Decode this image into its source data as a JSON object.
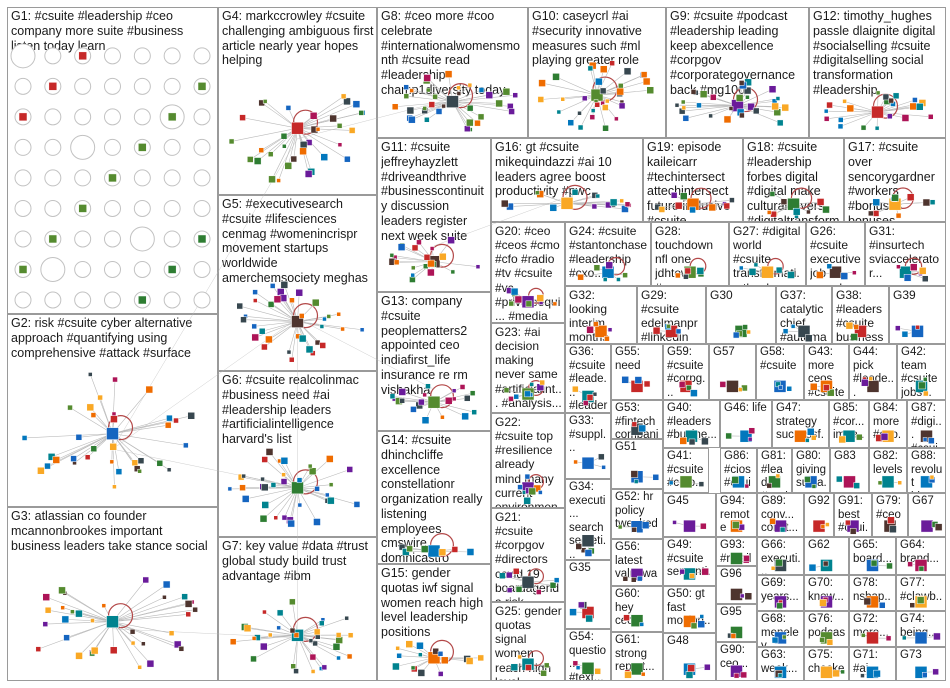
{
  "groups": [
    {
      "id": "G1",
      "label": "G1: #csuite #leadership #ceo company more suite #business listen today learn"
    },
    {
      "id": "G2",
      "label": "G2: risk #csuite cyber alternative approach #quantifying using comprehensive #attack #surface"
    },
    {
      "id": "G3",
      "label": "G3: atlassian co founder mcannonbrookes important business leaders take stance social"
    },
    {
      "id": "G4",
      "label": "G4: markccrowley #csuite challenging ambiguous first article nearly year hopes helping"
    },
    {
      "id": "G5",
      "label": "G5: #executivesearch #csuite #lifesciences cenmag #womenincrispr movement startups worldwide amerchemsociety meghas"
    },
    {
      "id": "G6",
      "label": "G6: #csuite realcolinmac #business need #ai #leadership leaders #artificialintelligence harvard's list"
    },
    {
      "id": "G7",
      "label": "G7: key value #data #trust global study build trust advantage #ibm"
    },
    {
      "id": "G8",
      "label": "G8: #ceo more #coo celebrate #internationalwomensmonth #csuite read #leadership champ1diversity today"
    },
    {
      "id": "G9",
      "label": "G9: #csuite #podcast #leadership leading keep abexcellence #corpgov #corporategovernance back #mg100"
    },
    {
      "id": "G10",
      "label": "G10: caseycrl #ai #security innovative measures such #ml playing greater role"
    },
    {
      "id": "G11",
      "label": "G11: #csuite jeffreyhayzlett #driveandthrive #businesscontinuity discussion leaders register next week suite"
    },
    {
      "id": "G12",
      "label": "G12: timothy_hughes passle dlaignite digital #socialselling #csuite #digitalselling social transformation #leadership"
    },
    {
      "id": "G13",
      "label": "G13: company #csuite peoplematters2 appointed ceo indiafirst_life insurance re rm vishakha"
    },
    {
      "id": "G14",
      "label": "G14: #csuite dhinchcliffe excellence constellationr organization really listening employees cmswire domnicastro"
    },
    {
      "id": "G15",
      "label": "G15: gender quotas iwf signal women reach high level leadership positions"
    },
    {
      "id": "G16",
      "label": "G16: gt #csuite mikequindazzi #ai 10 leaders agree boost productivity #pwc"
    },
    {
      "id": "G17",
      "label": "G17: #csuite over sencorygardner #workers #bonuses bonuses senatemajldr..."
    },
    {
      "id": "G18",
      "label": "G18: #csuite #leadership forbes digital #digital make cultural levers #digitaltransform..."
    },
    {
      "id": "G19",
      "label": "G19: episode kaileicarr #techintersect attechintersect future inclusive #csuite..."
    },
    {
      "id": "G20",
      "label": "G20: #ceo #ceos #cmo #cfo #radio #tv #csuite #vc #privateequi... #media"
    },
    {
      "id": "G21",
      "label": "G21: #csuite #corpgov #directors covid 19 boardagenda risk boards..."
    },
    {
      "id": "G22",
      "label": "G22: #csuite top #resilience already mind many current environmen..."
    },
    {
      "id": "G23",
      "label": "G23: #ai decision making never same #artificialint... #analysis..."
    },
    {
      "id": "G24",
      "label": "G24: #csuite #stantonchase #leadership #cxo..."
    },
    {
      "id": "G25",
      "label": "G25: gender quotas signal women reach high level leadership..."
    },
    {
      "id": "G26",
      "label": "G26: #csuite executive job search megguiseppi... join..."
    },
    {
      "id": "G27",
      "label": "G27: #digital world #csuite transformati... thanks..."
    },
    {
      "id": "G28",
      "label": "G28: touchdown nfl one jdhtown #cmo..."
    },
    {
      "id": "G29",
      "label": "G29: #csuite edelmanpr #linkedin study..."
    },
    {
      "id": "G30",
      "label": "G30"
    },
    {
      "id": "G31",
      "label": "G31: #insurtech sviaccelerator..."
    },
    {
      "id": "G32",
      "label": "G32: looking interim months application..."
    },
    {
      "id": "G33",
      "label": "G33: #suppl..."
    },
    {
      "id": "G34",
      "label": "G34: executi... search secreti... #gated..."
    },
    {
      "id": "G35",
      "label": "G35"
    },
    {
      "id": "G36",
      "label": "G36: #csuite #leade... #leaders #wome..."
    },
    {
      "id": "G37",
      "label": "G37: catalytic chief #automa..."
    },
    {
      "id": "G38",
      "label": "G38: #leaders #csuite business..."
    },
    {
      "id": "G39",
      "label": "G39"
    },
    {
      "id": "G40",
      "label": "G40: #leaders #busine..."
    },
    {
      "id": "G41",
      "label": "G41: #csuite #cmo..."
    },
    {
      "id": "G42",
      "label": "G42: team #csuite jobs..."
    },
    {
      "id": "G43",
      "label": "G43: more ceos #csuite..."
    },
    {
      "id": "G44",
      "label": "G44: pick #leade... #csuite..."
    },
    {
      "id": "G45",
      "label": "G45"
    },
    {
      "id": "G46",
      "label": "G46: life"
    },
    {
      "id": "G47",
      "label": "G47: strategy successf..."
    },
    {
      "id": "G48",
      "label": "G48"
    },
    {
      "id": "G49",
      "label": "G49: #csuite semanti..."
    },
    {
      "id": "G50",
      "label": "G50: gt fast moving..."
    },
    {
      "id": "G51",
      "label": "G51"
    },
    {
      "id": "G52",
      "label": "G52: hr policy tweaked..."
    },
    {
      "id": "G53",
      "label": "G53: #fintech compani..."
    },
    {
      "id": "G54",
      "label": "G54: questio... #text..."
    },
    {
      "id": "G55",
      "label": "G55: need"
    },
    {
      "id": "G56",
      "label": "G56: latest valuewa..."
    },
    {
      "id": "G57",
      "label": "G57"
    },
    {
      "id": "G58",
      "label": "G58: #csuite"
    },
    {
      "id": "G59",
      "label": "G59: #csuite #corpg... #invest..."
    },
    {
      "id": "G60",
      "label": "G60: hey ceos cmos..."
    },
    {
      "id": "G61",
      "label": "G61: strong report..."
    },
    {
      "id": "G62",
      "label": "G62"
    },
    {
      "id": "G63",
      "label": "G63: week..."
    },
    {
      "id": "G64",
      "label": "G64: brand..."
    },
    {
      "id": "G65",
      "label": "G65: board..."
    },
    {
      "id": "G66",
      "label": "G66: executi..."
    },
    {
      "id": "G67",
      "label": "G67"
    },
    {
      "id": "G68",
      "label": "G68: meneley"
    },
    {
      "id": "G69",
      "label": "G69: years..."
    },
    {
      "id": "G70",
      "label": "G70: know..."
    },
    {
      "id": "G71",
      "label": "G71: #ai..."
    },
    {
      "id": "G72",
      "label": "G72: more..."
    },
    {
      "id": "G73",
      "label": "G73"
    },
    {
      "id": "G74",
      "label": "G74: being..."
    },
    {
      "id": "G75",
      "label": "G75: checke..."
    },
    {
      "id": "G76",
      "label": "G76: podcas..."
    },
    {
      "id": "G77",
      "label": "G77: #clawb..."
    },
    {
      "id": "G78",
      "label": "G78: nsbap..."
    },
    {
      "id": "G79",
      "label": "G79: #ceo"
    },
    {
      "id": "G80",
      "label": "G80: giving susta..."
    },
    {
      "id": "G81",
      "label": "G81: #lead... #csui..."
    },
    {
      "id": "G82",
      "label": "G82: levels"
    },
    {
      "id": "G83",
      "label": "G83"
    },
    {
      "id": "G84",
      "label": "G84: more #ceo..."
    },
    {
      "id": "G85",
      "label": "G85: #cor... impa..."
    },
    {
      "id": "G86",
      "label": "G86: #cios #csui..."
    },
    {
      "id": "G87",
      "label": "G87: #digi... #csui..."
    },
    {
      "id": "G88",
      "label": "G88: revolut hires..."
    },
    {
      "id": "G89",
      "label": "G89: conv... const..."
    },
    {
      "id": "G90",
      "label": "G90: ceo..."
    },
    {
      "id": "G91",
      "label": "G91: best #csui..."
    },
    {
      "id": "G92",
      "label": "G92"
    },
    {
      "id": "G93",
      "label": "G93: #retail..."
    },
    {
      "id": "G94",
      "label": "G94: remote"
    },
    {
      "id": "G95",
      "label": "G95"
    },
    {
      "id": "G96",
      "label": "G96"
    }
  ],
  "colors": {
    "border": "#9a9a9a",
    "edge": "#b9b9b9",
    "ring": "#c2c2c2",
    "loop": "#b34848",
    "node_palette": [
      "#2e7d32",
      "#1565c0",
      "#c62828",
      "#f9a825",
      "#6a1b9a",
      "#00838f",
      "#ef6c00",
      "#558b2f",
      "#ad1457",
      "#37474f",
      "#4e342e",
      "#0277bd"
    ],
    "G2_highlight": "#d32f2f"
  }
}
